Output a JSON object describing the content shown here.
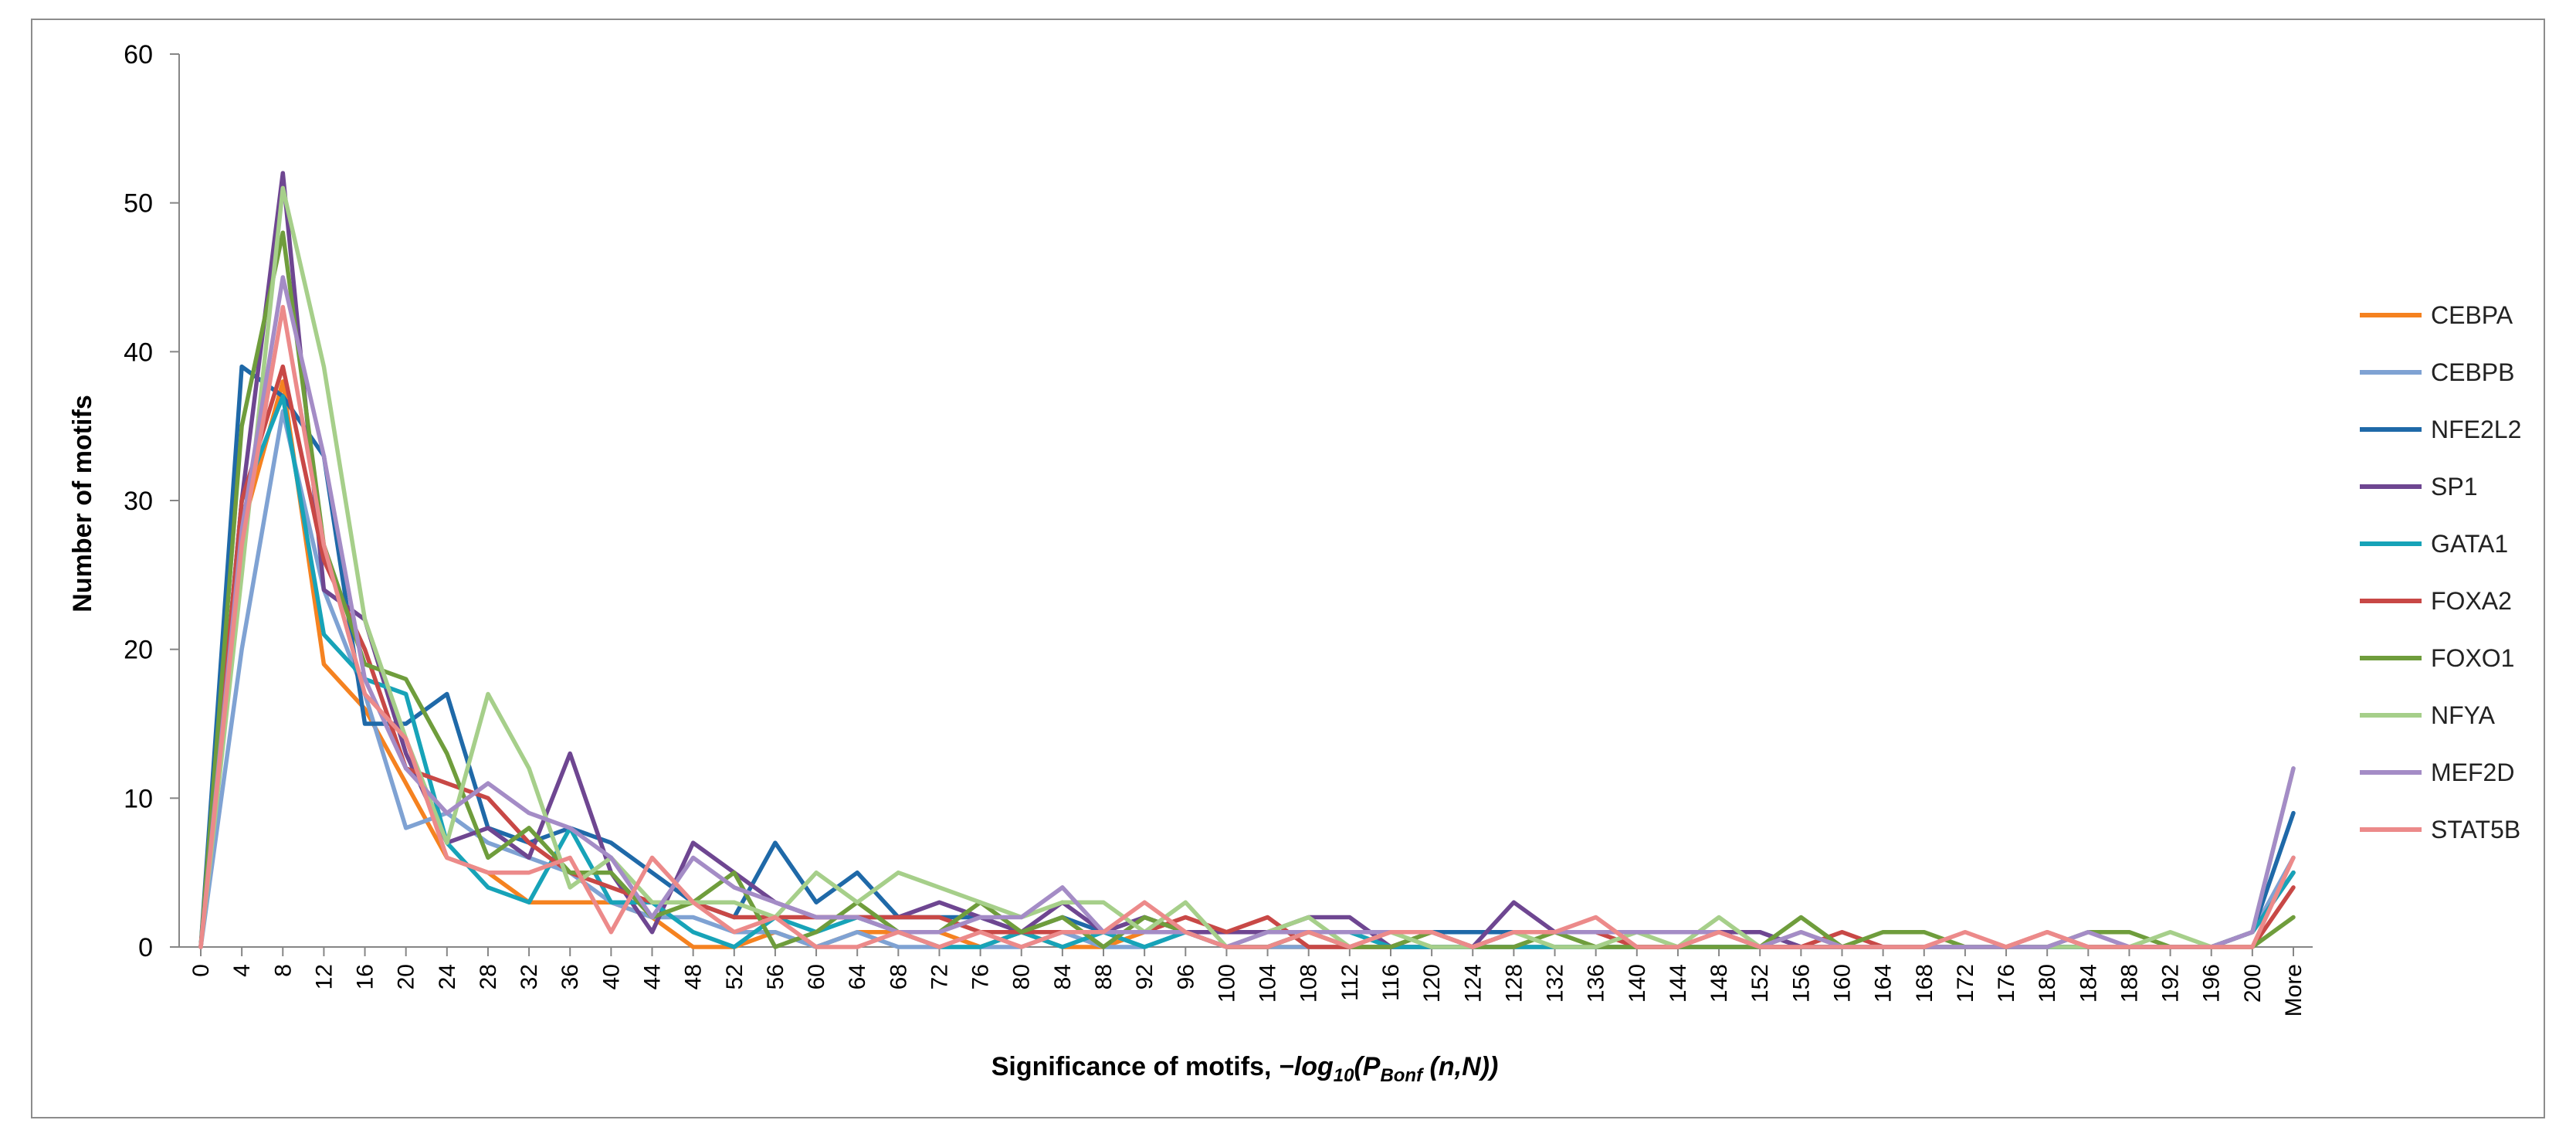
{
  "chart_data": {
    "type": "line",
    "title": "",
    "ylabel": "Number of motifs",
    "xlabel": {
      "prefix": "Significance of motifs, ",
      "formula_main": "−log",
      "formula_base": "10",
      "formula_open": "(P",
      "formula_sub": "Bonf",
      "formula_close": " (n,N))"
    },
    "ylim": [
      0,
      60
    ],
    "yticks": [
      0,
      10,
      20,
      30,
      40,
      50,
      60
    ],
    "grid": false,
    "legend_position": "right",
    "categories": [
      "0",
      "4",
      "8",
      "12",
      "16",
      "20",
      "24",
      "28",
      "32",
      "36",
      "40",
      "44",
      "48",
      "52",
      "56",
      "60",
      "64",
      "68",
      "72",
      "76",
      "80",
      "84",
      "88",
      "92",
      "96",
      "100",
      "104",
      "108",
      "112",
      "116",
      "120",
      "124",
      "128",
      "132",
      "136",
      "140",
      "144",
      "148",
      "152",
      "156",
      "160",
      "164",
      "168",
      "172",
      "176",
      "180",
      "184",
      "188",
      "192",
      "196",
      "200",
      "More"
    ],
    "series": [
      {
        "name": "CEBPA",
        "color": "#f58220",
        "values": [
          0,
          28,
          38,
          19,
          16,
          11,
          6,
          5,
          3,
          3,
          3,
          2,
          0,
          0,
          1,
          0,
          1,
          1,
          1,
          0,
          1,
          0,
          0,
          1,
          1,
          0,
          0,
          0,
          0,
          0,
          0,
          0,
          0,
          0,
          0,
          0,
          0,
          0,
          0,
          0,
          0,
          0,
          0,
          0,
          0,
          0,
          0,
          0,
          0,
          0,
          1,
          5
        ]
      },
      {
        "name": "CEBPB",
        "color": "#7fa2d3",
        "values": [
          0,
          20,
          36,
          24,
          17,
          8,
          9,
          7,
          6,
          5,
          3,
          2,
          2,
          1,
          1,
          0,
          1,
          0,
          0,
          0,
          0,
          1,
          0,
          0,
          1,
          0,
          0,
          0,
          0,
          0,
          0,
          0,
          0,
          0,
          0,
          0,
          0,
          0,
          0,
          0,
          0,
          0,
          0,
          0,
          0,
          0,
          0,
          0,
          0,
          0,
          1,
          6
        ]
      },
      {
        "name": "NFE2L2",
        "color": "#1f69a8",
        "values": [
          0,
          39,
          37,
          33,
          15,
          15,
          17,
          8,
          7,
          8,
          7,
          5,
          3,
          2,
          7,
          3,
          5,
          2,
          2,
          2,
          1,
          2,
          1,
          2,
          1,
          1,
          1,
          1,
          1,
          1,
          1,
          1,
          1,
          1,
          1,
          1,
          1,
          1,
          1,
          0,
          0,
          0,
          0,
          0,
          0,
          0,
          0,
          0,
          0,
          0,
          1,
          9
        ]
      },
      {
        "name": "SP1",
        "color": "#6e4691",
        "values": [
          0,
          30,
          52,
          24,
          22,
          13,
          7,
          8,
          6,
          13,
          5,
          1,
          7,
          5,
          3,
          2,
          2,
          2,
          3,
          2,
          1,
          3,
          1,
          2,
          1,
          1,
          1,
          2,
          2,
          0,
          0,
          0,
          3,
          1,
          1,
          1,
          1,
          1,
          1,
          0,
          0,
          0,
          0,
          0,
          0,
          0,
          0,
          0,
          0,
          0,
          1,
          5
        ]
      },
      {
        "name": "GATA1",
        "color": "#17a3b8",
        "values": [
          0,
          30,
          37,
          21,
          18,
          17,
          7,
          4,
          3,
          8,
          3,
          3,
          1,
          0,
          2,
          1,
          2,
          1,
          0,
          0,
          1,
          0,
          1,
          0,
          1,
          0,
          0,
          1,
          1,
          0,
          0,
          0,
          0,
          0,
          0,
          0,
          0,
          0,
          0,
          0,
          0,
          0,
          0,
          0,
          0,
          0,
          0,
          0,
          0,
          0,
          1,
          5
        ]
      },
      {
        "name": "FOXA2",
        "color": "#c84846",
        "values": [
          0,
          30,
          39,
          26,
          20,
          12,
          11,
          10,
          7,
          5,
          4,
          3,
          3,
          2,
          2,
          2,
          2,
          2,
          2,
          1,
          1,
          1,
          1,
          1,
          2,
          1,
          2,
          0,
          0,
          0,
          1,
          0,
          1,
          1,
          1,
          0,
          0,
          1,
          0,
          0,
          1,
          0,
          0,
          0,
          0,
          1,
          0,
          0,
          0,
          0,
          0,
          4
        ]
      },
      {
        "name": "FOXO1",
        "color": "#6f9d3c",
        "values": [
          0,
          35,
          48,
          27,
          19,
          18,
          13,
          6,
          8,
          5,
          5,
          2,
          3,
          5,
          0,
          1,
          3,
          1,
          1,
          3,
          1,
          2,
          0,
          2,
          1,
          0,
          0,
          1,
          0,
          0,
          1,
          0,
          0,
          1,
          0,
          0,
          0,
          0,
          0,
          2,
          0,
          1,
          1,
          0,
          0,
          0,
          1,
          1,
          0,
          0,
          0,
          2
        ]
      },
      {
        "name": "NFYA",
        "color": "#a6cf8a",
        "values": [
          0,
          25,
          51,
          39,
          22,
          14,
          7,
          17,
          12,
          4,
          6,
          3,
          3,
          3,
          2,
          5,
          3,
          5,
          4,
          3,
          2,
          3,
          3,
          1,
          3,
          0,
          1,
          2,
          0,
          1,
          0,
          0,
          1,
          0,
          0,
          1,
          0,
          2,
          0,
          1,
          0,
          0,
          0,
          0,
          0,
          0,
          0,
          0,
          1,
          0,
          1,
          12
        ]
      },
      {
        "name": "MEF2D",
        "color": "#a48cc6",
        "values": [
          0,
          28,
          45,
          33,
          18,
          12,
          9,
          11,
          9,
          8,
          6,
          2,
          6,
          4,
          3,
          2,
          2,
          1,
          1,
          2,
          2,
          4,
          1,
          1,
          1,
          0,
          1,
          1,
          1,
          1,
          1,
          0,
          1,
          1,
          1,
          1,
          1,
          1,
          0,
          1,
          0,
          0,
          0,
          0,
          0,
          0,
          1,
          0,
          0,
          0,
          1,
          12
        ]
      },
      {
        "name": "STAT5B",
        "color": "#ec8a8a",
        "values": [
          0,
          27,
          43,
          27,
          17,
          14,
          6,
          5,
          5,
          6,
          1,
          6,
          3,
          1,
          2,
          0,
          0,
          1,
          0,
          1,
          0,
          1,
          1,
          3,
          1,
          0,
          0,
          1,
          0,
          1,
          1,
          0,
          1,
          1,
          2,
          0,
          0,
          1,
          0,
          0,
          0,
          0,
          0,
          1,
          0,
          1,
          0,
          0,
          0,
          0,
          0,
          6
        ]
      }
    ]
  }
}
